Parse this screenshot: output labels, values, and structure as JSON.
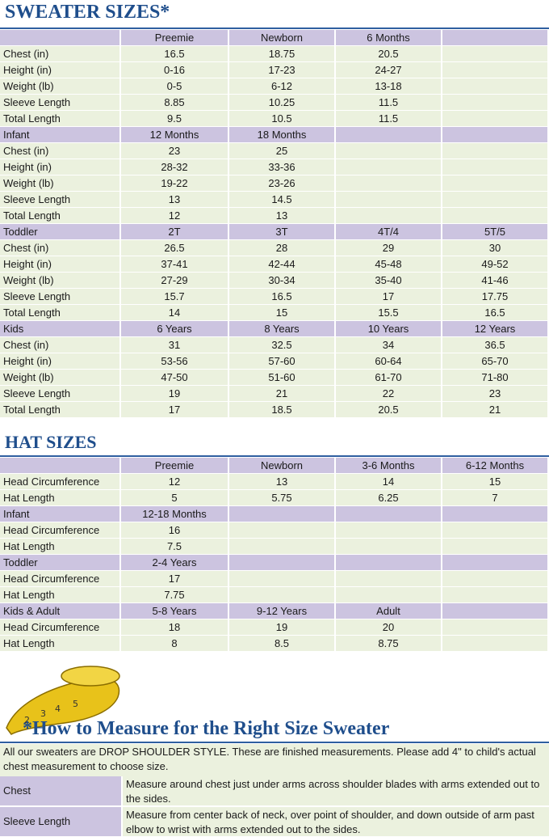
{
  "sweater": {
    "title": "SWEATER SIZES*",
    "sections": [
      {
        "header": {
          "cells": [
            "Preemie",
            "Newborn",
            "6 Months"
          ]
        },
        "rows": [
          {
            "label": "Chest (in)",
            "cells": [
              "16.5",
              "18.75",
              "20.5"
            ]
          },
          {
            "label": "Height (in)",
            "cells": [
              "0-16",
              "17-23",
              "24-27"
            ]
          },
          {
            "label": "Weight (lb)",
            "cells": [
              "0-5",
              "6-12",
              "13-18"
            ]
          },
          {
            "label": "Sleeve Length",
            "cells": [
              "8.85",
              "10.25",
              "11.5"
            ]
          },
          {
            "label": "Total Length",
            "cells": [
              "9.5",
              "10.5",
              "11.5"
            ]
          }
        ]
      },
      {
        "header": {
          "label": "Infant",
          "cells": [
            "12 Months",
            "18 Months"
          ]
        },
        "rows": [
          {
            "label": "Chest (in)",
            "cells": [
              "23",
              "25"
            ]
          },
          {
            "label": "Height (in)",
            "cells": [
              "28-32",
              "33-36"
            ]
          },
          {
            "label": "Weight (lb)",
            "cells": [
              "19-22",
              "23-26"
            ]
          },
          {
            "label": "Sleeve Length",
            "cells": [
              "13",
              "14.5"
            ]
          },
          {
            "label": "Total Length",
            "cells": [
              "12",
              "13"
            ]
          }
        ]
      },
      {
        "header": {
          "label": "Toddler",
          "cells": [
            "2T",
            "3T",
            "4T/4",
            "5T/5"
          ]
        },
        "rows": [
          {
            "label": "Chest (in)",
            "cells": [
              "26.5",
              "28",
              "29",
              "30"
            ]
          },
          {
            "label": "Height (in)",
            "cells": [
              "37-41",
              "42-44",
              "45-48",
              "49-52"
            ]
          },
          {
            "label": "Weight (lb)",
            "cells": [
              "27-29",
              "30-34",
              "35-40",
              "41-46"
            ]
          },
          {
            "label": "Sleeve Length",
            "cells": [
              "15.7",
              "16.5",
              "17",
              "17.75"
            ]
          },
          {
            "label": "Total Length",
            "cells": [
              "14",
              "15",
              "15.5",
              "16.5"
            ]
          }
        ]
      },
      {
        "header": {
          "label": "Kids",
          "cells": [
            "6 Years",
            "8 Years",
            "10 Years",
            "12 Years"
          ]
        },
        "rows": [
          {
            "label": "Chest (in)",
            "cells": [
              "31",
              "32.5",
              "34",
              "36.5"
            ]
          },
          {
            "label": "Height (in)",
            "cells": [
              "53-56",
              "57-60",
              "60-64",
              "65-70"
            ]
          },
          {
            "label": "Weight (lb)",
            "cells": [
              "47-50",
              "51-60",
              "61-70",
              "71-80"
            ]
          },
          {
            "label": "Sleeve Length",
            "cells": [
              "19",
              "21",
              "22",
              "23"
            ]
          },
          {
            "label": "Total Length",
            "cells": [
              "17",
              "18.5",
              "20.5",
              "21"
            ]
          }
        ]
      }
    ]
  },
  "hat": {
    "title": "HAT SIZES",
    "sections": [
      {
        "header": {
          "cells": [
            "Preemie",
            "Newborn",
            "3-6 Months",
            "6-12 Months"
          ]
        },
        "rows": [
          {
            "label": "Head Circumference",
            "cells": [
              "12",
              "13",
              "14",
              "15"
            ]
          },
          {
            "label": "Hat Length",
            "cells": [
              "5",
              "5.75",
              "6.25",
              "7"
            ]
          }
        ]
      },
      {
        "header": {
          "label": "Infant",
          "cells": [
            "12-18 Months"
          ]
        },
        "rows": [
          {
            "label": "Head Circumference",
            "cells": [
              "16"
            ]
          },
          {
            "label": "Hat Length",
            "cells": [
              "7.5"
            ]
          }
        ]
      },
      {
        "header": {
          "label": "Toddler",
          "cells": [
            "2-4 Years"
          ]
        },
        "rows": [
          {
            "label": "Head Circumference",
            "cells": [
              "17"
            ]
          },
          {
            "label": "Hat Length",
            "cells": [
              "7.75"
            ]
          }
        ]
      },
      {
        "header": {
          "label": "Kids & Adult",
          "cells": [
            "5-8 Years",
            "9-12 Years",
            "Adult"
          ]
        },
        "rows": [
          {
            "label": "Head Circumference",
            "cells": [
              "18",
              "19",
              "20"
            ]
          },
          {
            "label": "Hat Length",
            "cells": [
              "8",
              "8.5",
              "8.75"
            ]
          }
        ]
      }
    ]
  },
  "measure": {
    "title": "*How to Measure for the Right Size Sweater",
    "note": "All our sweaters are DROP SHOULDER STYLE.  These are finished measurements.  Please add 4\" to child's actual chest measurement to choose size.",
    "rows": [
      {
        "label": "Chest",
        "text": "Measure around chest just under arms across shoulder blades with arms extended out to the sides."
      },
      {
        "label": "Sleeve Length",
        "text": "Measure from center back of neck, over point of shoulder, and down outside of arm past elbow to wrist with arms extended out to the sides."
      }
    ]
  }
}
